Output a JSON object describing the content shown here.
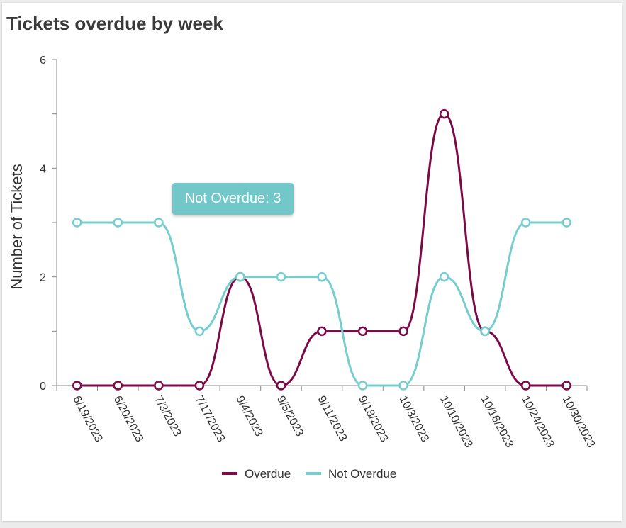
{
  "title": "Tickets overdue by week",
  "tooltip": {
    "series": "Not Overdue",
    "value": "3",
    "text": "Not Overdue: 3"
  },
  "colors": {
    "overdue": "#7c0a48",
    "not_overdue": "#76cdcd",
    "axis": "#888888",
    "text": "#333333"
  },
  "chart_data": {
    "type": "line",
    "title": "Tickets overdue by week",
    "xlabel": "",
    "ylabel": "Number of Tickets",
    "ylim": [
      0,
      6
    ],
    "yticks": [
      0,
      2,
      4,
      6
    ],
    "categories": [
      "6/19/2023",
      "6/20/2023",
      "7/3/2023",
      "7/17/2023",
      "9/4/2023",
      "9/5/2023",
      "9/11/2023",
      "9/18/2023",
      "10/3/2023",
      "10/10/2023",
      "10/16/2023",
      "10/24/2023",
      "10/30/2023"
    ],
    "series": [
      {
        "name": "Overdue",
        "color": "#7c0a48",
        "values": [
          0,
          0,
          0,
          0,
          2,
          0,
          1,
          1,
          1,
          5,
          1,
          0,
          0
        ]
      },
      {
        "name": "Not Overdue",
        "color": "#76cdcd",
        "values": [
          3,
          3,
          3,
          1,
          2,
          2,
          2,
          0,
          0,
          2,
          1,
          3,
          3
        ]
      }
    ],
    "legend_position": "bottom-center"
  }
}
